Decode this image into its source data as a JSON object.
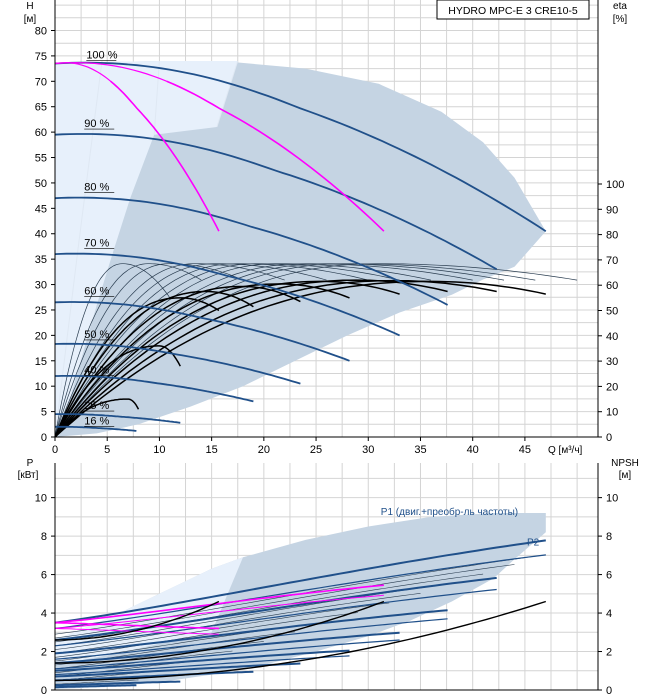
{
  "colors": {
    "grid": "#d4d4d4",
    "envelope": "#c5d4e3",
    "envelope_light": "#e7f0fb",
    "blue": "#20508a",
    "magenta": "#ff00ff",
    "black": "#000000",
    "thin": "#2a3d50"
  },
  "chart_data": [
    {
      "type": "line",
      "legend_box": "HYDRO MPC-E 3 CRE10-5",
      "left_axis": {
        "label": "H",
        "unit": "[м]",
        "ticks": [
          0,
          5,
          10,
          15,
          20,
          25,
          30,
          35,
          40,
          45,
          50,
          55,
          60,
          65,
          70,
          75,
          80
        ],
        "range": [
          0,
          86
        ]
      },
      "right_axis": {
        "label": "eta",
        "unit": "[%]",
        "ticks": [
          0,
          10,
          20,
          30,
          40,
          50,
          60,
          70,
          80,
          90,
          100
        ],
        "range": [
          0,
          100
        ]
      },
      "x_axis": {
        "label": "Q [м³/ч]",
        "ticks": [
          0,
          5,
          10,
          15,
          20,
          25,
          30,
          35,
          40,
          45
        ],
        "range": [
          0,
          52
        ]
      },
      "grid": true,
      "speed_curve_labels": [
        {
          "text": "100 %",
          "q": 3.0,
          "h": 74.5
        },
        {
          "text": "90 %",
          "q": 2.8,
          "h": 61
        },
        {
          "text": "80 %",
          "q": 2.8,
          "h": 48.5
        },
        {
          "text": "70 %",
          "q": 2.8,
          "h": 37.5
        },
        {
          "text": "60 %",
          "q": 2.8,
          "h": 28
        },
        {
          "text": "50 %",
          "q": 2.8,
          "h": 19.5
        },
        {
          "text": "40 %",
          "q": 2.8,
          "h": 12.5
        },
        {
          "text": "25 %",
          "q": 2.8,
          "h": 5.5
        },
        {
          "text": "16 %",
          "q": 2.8,
          "h": 2.5
        }
      ],
      "envelope": [
        [
          0,
          0
        ],
        [
          0,
          73.5
        ],
        [
          4.5,
          73.8
        ],
        [
          10,
          74
        ],
        [
          17,
          73.8
        ],
        [
          24,
          72.5
        ],
        [
          31,
          69.5
        ],
        [
          37,
          64
        ],
        [
          41,
          58
        ],
        [
          44,
          51
        ],
        [
          47,
          40.5
        ],
        [
          44,
          33.5
        ],
        [
          41,
          31
        ],
        [
          38,
          28
        ],
        [
          33,
          24.5
        ],
        [
          28,
          20
        ],
        [
          23,
          15
        ],
        [
          18,
          10
        ],
        [
          13,
          6
        ],
        [
          8,
          2.5
        ],
        [
          4,
          0.7
        ],
        [
          0,
          0
        ]
      ],
      "envelope_light": [
        [
          0,
          0
        ],
        [
          0,
          73.5
        ],
        [
          4.5,
          73.8
        ],
        [
          10,
          74
        ],
        [
          17.5,
          74
        ],
        [
          15.5,
          61
        ],
        [
          9.5,
          59.5
        ],
        [
          7.2,
          47
        ],
        [
          5.5,
          36
        ],
        [
          4,
          26
        ],
        [
          2.6,
          16
        ],
        [
          1.5,
          8
        ],
        [
          0.6,
          2
        ],
        [
          0,
          0
        ]
      ],
      "envelope_inner_edges": [
        [
          [
            4.5,
            74
          ],
          [
            2.2,
            37
          ],
          [
            0,
            0
          ]
        ],
        [
          [
            10,
            74
          ],
          [
            9.5,
            59.5
          ]
        ],
        [
          [
            17.5,
            74
          ],
          [
            15.5,
            61
          ]
        ]
      ],
      "qh_curves_full": [
        {
          "h0": 73.5,
          "qmax": 47,
          "hend": 40.5
        },
        {
          "h0": 59.5,
          "qmax": 42.3,
          "hend": 33
        },
        {
          "h0": 47,
          "qmax": 37.6,
          "hend": 26
        },
        {
          "h0": 36,
          "qmax": 33,
          "hend": 20
        },
        {
          "h0": 26.5,
          "qmax": 28.2,
          "hend": 15
        },
        {
          "h0": 18.3,
          "qmax": 23.5,
          "hend": 10.5
        },
        {
          "h0": 12,
          "qmax": 19,
          "hend": 7
        },
        {
          "h0": 4.5,
          "qmax": 12,
          "hend": 2.8
        },
        {
          "h0": 2,
          "qmax": 7.8,
          "hend": 1.2
        }
      ],
      "qh_curves_mid": [
        {
          "h0": 73.5,
          "qmax": 31.5,
          "hend": 40.5
        }
      ],
      "qh_curves_short": [
        {
          "h0": 73.5,
          "qmax": 15.7,
          "hend": 40.5
        }
      ],
      "eta_curves_black_bold": [
        {
          "qmax": 47,
          "eta_max": 61.5,
          "qpeak": 36,
          "eta_end": 56.5
        },
        {
          "qmax": 42.3,
          "eta_max": 61.8,
          "qpeak": 32.5,
          "eta_end": 57.5
        },
        {
          "qmax": 37.6,
          "eta_max": 62.0,
          "qpeak": 29,
          "eta_end": 57.5
        },
        {
          "qmax": 33,
          "eta_max": 61.5,
          "qpeak": 25.5,
          "eta_end": 56.5
        },
        {
          "qmax": 28.2,
          "eta_max": 60.5,
          "qpeak": 21.5,
          "eta_end": 55
        },
        {
          "qmax": 23.5,
          "eta_max": 59.5,
          "qpeak": 18,
          "eta_end": 53.5
        },
        {
          "qmax": 19,
          "eta_max": 57.5,
          "qpeak": 14.5,
          "eta_end": 51.5
        },
        {
          "qmax": 15.7,
          "eta_max": 55,
          "qpeak": 12,
          "eta_end": 50
        },
        {
          "qmax": 12,
          "eta_max": 36,
          "qpeak": 10,
          "eta_end": 28
        },
        {
          "qmax": 8,
          "eta_max": 15,
          "qpeak": 7,
          "eta_end": 11
        }
      ],
      "eta_curves_black_thin": [
        {
          "qmax": 50,
          "eta_max": 68.5,
          "qpeak": 31,
          "eta_end": 62
        },
        {
          "qmax": 46,
          "eta_max": 68.5,
          "qpeak": 28,
          "eta_end": 62
        },
        {
          "qmax": 43,
          "eta_max": 68.5,
          "qpeak": 26,
          "eta_end": 62
        },
        {
          "qmax": 40,
          "eta_max": 68.5,
          "qpeak": 24,
          "eta_end": 62
        },
        {
          "qmax": 36,
          "eta_max": 68.5,
          "qpeak": 21.5,
          "eta_end": 62
        },
        {
          "qmax": 33,
          "eta_max": 68.5,
          "qpeak": 19.5,
          "eta_end": 62
        },
        {
          "qmax": 30,
          "eta_max": 68.5,
          "qpeak": 17.5,
          "eta_end": 62
        },
        {
          "qmax": 26,
          "eta_max": 68.5,
          "qpeak": 15.5,
          "eta_end": 62
        },
        {
          "qmax": 22,
          "eta_max": 68.5,
          "qpeak": 13.5,
          "eta_end": 62
        },
        {
          "qmax": 18,
          "eta_max": 68.5,
          "qpeak": 11,
          "eta_end": 62
        },
        {
          "qmax": 14,
          "eta_max": 68.5,
          "qpeak": 9,
          "eta_end": 62
        },
        {
          "qmax": 11,
          "eta_max": 68.5,
          "qpeak": 6.5,
          "eta_end": 55
        }
      ]
    },
    {
      "type": "line",
      "left_axis": {
        "label": "P",
        "unit": "[кВт]",
        "ticks": [
          0,
          2,
          4,
          6,
          8,
          10
        ],
        "range": [
          0,
          11.8
        ]
      },
      "right_axis": {
        "label": "NPSH",
        "unit": "[м]",
        "ticks": [
          0,
          2,
          4,
          6,
          8,
          10
        ],
        "range": [
          0,
          11.8
        ]
      },
      "grid": true,
      "series_labels": [
        {
          "text": "P1 (двиг.+преобр-ль частоты)",
          "q": 31.2,
          "p": 9.1
        },
        {
          "text": "P2",
          "q": 45.2,
          "p": 7.5
        }
      ],
      "envelope": [
        [
          0,
          2.6
        ],
        [
          5,
          3.7
        ],
        [
          10,
          5.0
        ],
        [
          15,
          6.3
        ],
        [
          18,
          6.9
        ],
        [
          24,
          7.8
        ],
        [
          30,
          8.5
        ],
        [
          36,
          9.0
        ],
        [
          42,
          9.2
        ],
        [
          47,
          9.2
        ],
        [
          47,
          8.2
        ],
        [
          44,
          6.8
        ],
        [
          42,
          5.8
        ],
        [
          38,
          4.6
        ],
        [
          34,
          3.6
        ],
        [
          30,
          2.8
        ],
        [
          25,
          2.0
        ],
        [
          20,
          1.3
        ],
        [
          15,
          0.8
        ],
        [
          10,
          0.4
        ],
        [
          5,
          0.15
        ],
        [
          0,
          0.05
        ],
        [
          0,
          2.6
        ]
      ],
      "envelope_light": [
        [
          0,
          2.6
        ],
        [
          5,
          3.7
        ],
        [
          10,
          5.0
        ],
        [
          15,
          6.3
        ],
        [
          18,
          6.9
        ],
        [
          15,
          3.0
        ],
        [
          10,
          2.4
        ],
        [
          5,
          1.8
        ],
        [
          0,
          1.3
        ],
        [
          0,
          2.6
        ]
      ],
      "p1_curves": [
        {
          "p0": 3.5,
          "qmax": 47,
          "pend": 9.2
        },
        {
          "p0": 2.6,
          "qmax": 42.3,
          "pend": 6.9
        },
        {
          "p0": 1.9,
          "qmax": 37.6,
          "pend": 4.9
        },
        {
          "p0": 1.4,
          "qmax": 33,
          "pend": 3.5
        },
        {
          "p0": 1.0,
          "qmax": 28.2,
          "pend": 2.4
        },
        {
          "p0": 0.7,
          "qmax": 23.5,
          "pend": 1.6
        },
        {
          "p0": 0.5,
          "qmax": 19,
          "pend": 1.1
        },
        {
          "p0": 0.25,
          "qmax": 12,
          "pend": 0.5
        },
        {
          "p0": 0.15,
          "qmax": 7.8,
          "pend": 0.28
        }
      ],
      "p2_curves": [
        {
          "p0": 3.2,
          "qmax": 47,
          "pend": 8.3
        },
        {
          "p0": 2.3,
          "qmax": 42.3,
          "pend": 6.2
        },
        {
          "p0": 1.6,
          "qmax": 37.6,
          "pend": 4.4
        },
        {
          "p0": 1.1,
          "qmax": 33,
          "pend": 3.1
        },
        {
          "p0": 0.8,
          "qmax": 28.2,
          "pend": 2.1
        }
      ],
      "p1_magenta": [
        {
          "p0": 3.5,
          "qmax": 31.5,
          "pend": 6.1
        },
        {
          "p0": 3.5,
          "qmax": 15.7,
          "pend": 3.1
        }
      ],
      "p2_magenta": [
        {
          "p0": 3.2,
          "qmax": 31.5,
          "pend": 5.5
        },
        {
          "p0": 3.2,
          "qmax": 15.7,
          "pend": 2.8
        }
      ],
      "npsh_curves": [
        {
          "n0": 0.5,
          "qmax": 47,
          "nend": 4.6
        },
        {
          "n0": 1.4,
          "qmax": 31.5,
          "nend": 4.6
        },
        {
          "n0": 2.6,
          "qmax": 15.7,
          "nend": 4.6
        }
      ]
    }
  ]
}
